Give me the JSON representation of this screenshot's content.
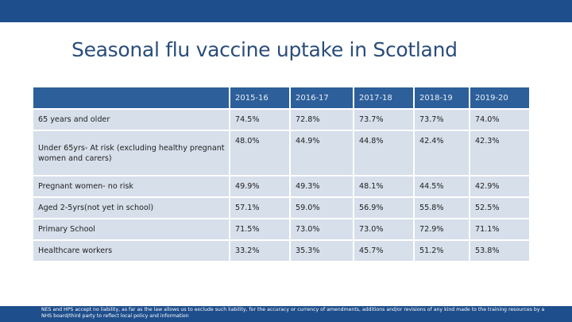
{
  "slide": {
    "title": "Seasonal flu vaccine uptake in Scotland",
    "disclaimer": "NES and HPS accept no liability, as far as the law allows us to exclude such liability, for the accuracy or currency of amendments, additions and/or revisions of any kind made to the training resources by a NHS board/third party to reflect local policy and information"
  },
  "table": {
    "headers": [
      "",
      "2015-16",
      "2016-17",
      "2017-18",
      "2018-19",
      "2019-20"
    ],
    "rows": [
      {
        "label": "65 years and older",
        "values": [
          "74.5%",
          "72.8%",
          "73.7%",
          "73.7%",
          "74.0%"
        ]
      },
      {
        "label": "Under 65yrs- At risk (excluding healthy pregnant women and carers)",
        "values": [
          "48.0%",
          "44.9%",
          "44.8%",
          "42.4%",
          "42.3%"
        ]
      },
      {
        "label": "Pregnant women- no risk",
        "values": [
          "49.9%",
          "49.3%",
          "48.1%",
          "44.5%",
          "42.9%"
        ]
      },
      {
        "label": "Aged 2-5yrs(not yet in school)",
        "values": [
          "57.1%",
          "59.0%",
          "56.9%",
          "55.8%",
          "52.5%"
        ]
      },
      {
        "label": "Primary School",
        "values": [
          "71.5%",
          "73.0%",
          "73.0%",
          "72.9%",
          "71.1%"
        ]
      },
      {
        "label": "Healthcare workers",
        "values": [
          "33.2%",
          "35.3%",
          "45.7%",
          "51.2%",
          "53.8%"
        ]
      }
    ]
  },
  "colors": {
    "banner": "#1e4e8c",
    "title_text": "#2a4d7a",
    "header_fill": "#2d5f9a",
    "row_fill": "#d6dfea"
  }
}
